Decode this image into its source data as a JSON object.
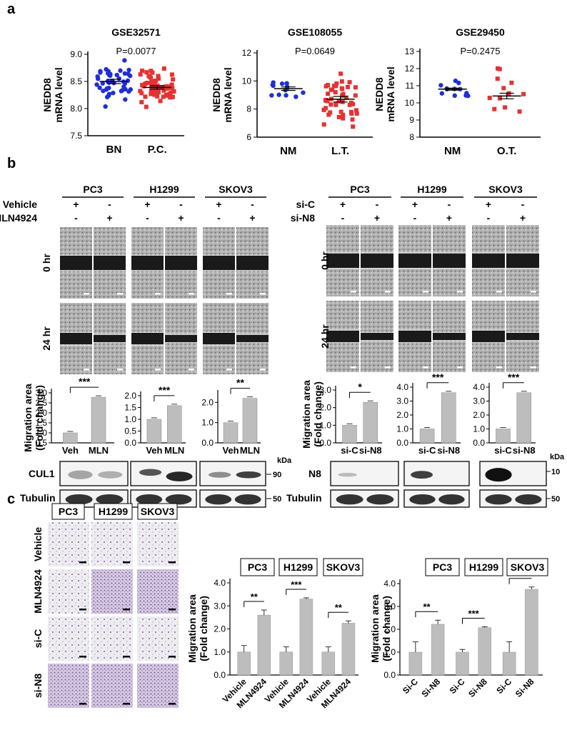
{
  "panel_labels": {
    "a": "a",
    "b": "b",
    "c": "c"
  },
  "panel_a": {
    "ylabel_line1": "NEDD8",
    "ylabel_line2": "mRNA level",
    "plots": [
      {
        "title": "GSE32571",
        "pvalue": "P=0.0077",
        "yticks": [
          "7.5",
          "8.0",
          "8.5",
          "9.0"
        ],
        "groups": [
          "BN",
          "P.C."
        ]
      },
      {
        "title": "GSE108055",
        "pvalue": "P=0.0649",
        "yticks": [
          "6",
          "8",
          "10",
          "12"
        ],
        "groups": [
          "NM",
          "L.T."
        ]
      },
      {
        "title": "GSE29450",
        "pvalue": "P=0.2475",
        "yticks": [
          "8",
          "9",
          "10",
          "11",
          "12",
          "13"
        ],
        "groups": [
          "NM",
          "O.T."
        ]
      }
    ]
  },
  "panel_b": {
    "left": {
      "cells": [
        "PC3",
        "H1299",
        "SKOV3"
      ],
      "row1_label": "Vehicle",
      "row2_label": "MLN4924",
      "signs_row1": [
        "+",
        "-"
      ],
      "signs_row2": [
        "-",
        "+"
      ],
      "time_labels": [
        "0 hr",
        "24 hr"
      ],
      "bar_xlabels": [
        "Veh",
        "MLN"
      ],
      "bar_ylabel_line1": "Migration area",
      "bar_ylabel_line2": "(Fold change)",
      "bars": [
        {
          "yticks": [
            "0.5",
            "1.0",
            "1.5",
            "2.0",
            "2.5",
            "3.0"
          ],
          "sig": "***"
        },
        {
          "yticks": [
            "0.0",
            "0.5",
            "1.0",
            "1.5",
            "2.0"
          ],
          "sig": "***"
        },
        {
          "yticks": [
            "0.0",
            "1.0",
            "2.0"
          ],
          "sig": "**"
        }
      ],
      "blot_labels": [
        "CUL1",
        "Tubulin"
      ],
      "kda": "kDa",
      "kda_values": [
        "90",
        "50"
      ]
    },
    "right": {
      "cells": [
        "PC3",
        "H1299",
        "SKOV3"
      ],
      "row1_label": "si-C",
      "row2_label": "si-N8",
      "signs_row1": [
        "+",
        "-"
      ],
      "signs_row2": [
        "-",
        "+"
      ],
      "time_labels": [
        "0 hr",
        "24 hr"
      ],
      "bar_xlabels": [
        "si-C",
        "si-N8"
      ],
      "bar_ylabel_line1": "Migration area",
      "bar_ylabel_line2": "(Fold change)",
      "bars": [
        {
          "yticks": [
            "0.0",
            "1.0",
            "2.0",
            "3.0"
          ],
          "sig": "*"
        },
        {
          "yticks": [
            "0.0",
            "1.0",
            "2.0",
            "3.0",
            "4.0"
          ],
          "sig": "***"
        },
        {
          "yticks": [
            "0.0",
            "1.0",
            "2.0",
            "3.0",
            "4.0"
          ],
          "sig": "***"
        }
      ],
      "blot_labels": [
        "N8",
        "Tubulin"
      ],
      "kda": "kDa",
      "kda_values": [
        "10",
        "50"
      ]
    }
  },
  "panel_c": {
    "cells": [
      "PC3",
      "H1299",
      "SKOV3"
    ],
    "row_labels": [
      "Vehicle",
      "MLN4924",
      "si-C",
      "si-N8"
    ],
    "chart_ylabel_line1": "Migration area",
    "chart_ylabel_line2": "(Fold change)",
    "yticks": [
      "0.0",
      "1.0",
      "2.0",
      "3.0",
      "4.0"
    ],
    "chart1_xlabels": [
      "Vehicle",
      "MLN4924",
      "Vehicle",
      "MLN4924",
      "Vehicle",
      "MLN4924"
    ],
    "chart1_sig": [
      "**",
      "***",
      "**"
    ],
    "chart2_xlabels": [
      "Si-C",
      "Si-N8",
      "Si-C",
      "Si-N8",
      "Si-C",
      "Si-N8"
    ],
    "chart2_sig": [
      "**",
      "***",
      "***"
    ]
  },
  "chart_data": [
    {
      "type": "scatter",
      "title": "GSE32571",
      "categories": [
        "BN",
        "P.C."
      ],
      "ylim": [
        7.5,
        9.0
      ],
      "means": [
        8.5,
        8.39
      ],
      "colors": [
        "#1f2fd6",
        "#e63232"
      ]
    },
    {
      "type": "scatter",
      "title": "GSE108055",
      "categories": [
        "NM",
        "L.T."
      ],
      "ylim": [
        6,
        12
      ],
      "means": [
        9.45,
        8.7
      ],
      "colors": [
        "#1f2fd6",
        "#e63232"
      ]
    },
    {
      "type": "scatter",
      "title": "GSE29450",
      "categories": [
        "NM",
        "O.T."
      ],
      "ylim": [
        8,
        13
      ],
      "means": [
        10.8,
        10.4
      ],
      "colors": [
        "#1f2fd6",
        "#e63232"
      ]
    },
    {
      "type": "bar",
      "categories": [
        "Veh",
        "MLN"
      ],
      "values": [
        1.0,
        2.78
      ],
      "ylim": [
        0.5,
        3.0
      ]
    },
    {
      "type": "bar",
      "categories": [
        "Veh",
        "MLN"
      ],
      "values": [
        1.0,
        1.58
      ],
      "ylim": [
        0.0,
        2.0
      ]
    },
    {
      "type": "bar",
      "categories": [
        "Veh",
        "MLN"
      ],
      "values": [
        1.0,
        2.2
      ],
      "ylim": [
        0.0,
        2.4
      ]
    },
    {
      "type": "bar",
      "categories": [
        "si-C",
        "si-N8"
      ],
      "values": [
        1.0,
        2.3
      ],
      "ylim": [
        0.0,
        3.0
      ]
    },
    {
      "type": "bar",
      "categories": [
        "si-C",
        "si-N8"
      ],
      "values": [
        1.0,
        3.6
      ],
      "ylim": [
        0.0,
        4.0
      ]
    },
    {
      "type": "bar",
      "categories": [
        "si-C",
        "si-N8"
      ],
      "values": [
        1.0,
        3.6
      ],
      "ylim": [
        0.0,
        4.0
      ]
    },
    {
      "type": "bar",
      "categories": [
        "Vehicle",
        "MLN4924",
        "Vehicle",
        "MLN4924",
        "Vehicle",
        "MLN4924"
      ],
      "values": [
        1.0,
        2.6,
        1.0,
        3.3,
        1.0,
        2.25
      ],
      "errors": [
        0.28,
        0.22,
        0.22,
        0.05,
        0.22,
        0.1
      ],
      "ylim": [
        0.0,
        4.0
      ]
    },
    {
      "type": "bar",
      "categories": [
        "Si-C",
        "Si-N8",
        "Si-C",
        "Si-N8",
        "Si-C",
        "Si-N8"
      ],
      "values": [
        1.0,
        2.22,
        1.0,
        2.07,
        1.0,
        3.75
      ],
      "errors": [
        0.45,
        0.18,
        0.12,
        0.04,
        0.45,
        0.1
      ],
      "ylim": [
        0.0,
        5.0
      ]
    }
  ]
}
